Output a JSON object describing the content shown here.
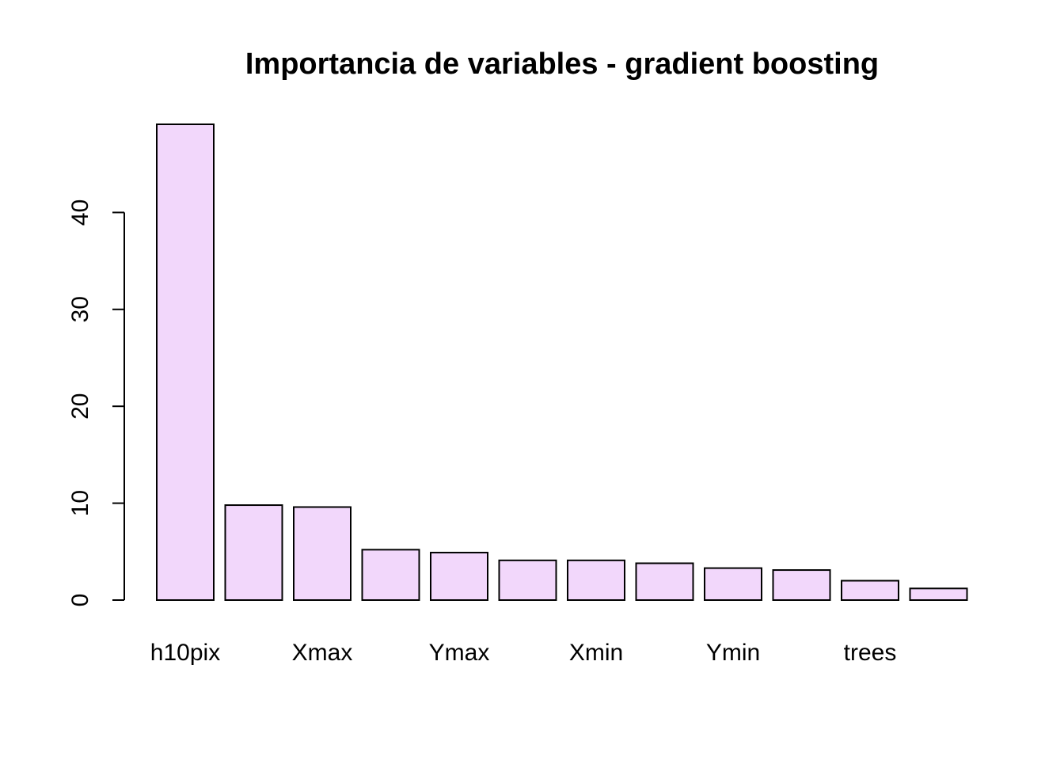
{
  "chart_data": {
    "type": "bar",
    "title": "Importancia de variables - gradient boosting",
    "xlabel": "",
    "ylabel": "",
    "categories": [
      "h10pix",
      "",
      "Xmax",
      "",
      "Ymax",
      "",
      "Xmin",
      "",
      "Ymin",
      "",
      "trees",
      ""
    ],
    "values": [
      49.1,
      9.8,
      9.6,
      5.2,
      4.9,
      4.1,
      4.1,
      3.8,
      3.3,
      3.1,
      2.0,
      1.2
    ],
    "ylim": [
      0,
      49.1
    ],
    "yticks": [
      0,
      10,
      20,
      30,
      40
    ],
    "bar_color": "#F2D7FB",
    "grid": false,
    "legend": "none"
  }
}
